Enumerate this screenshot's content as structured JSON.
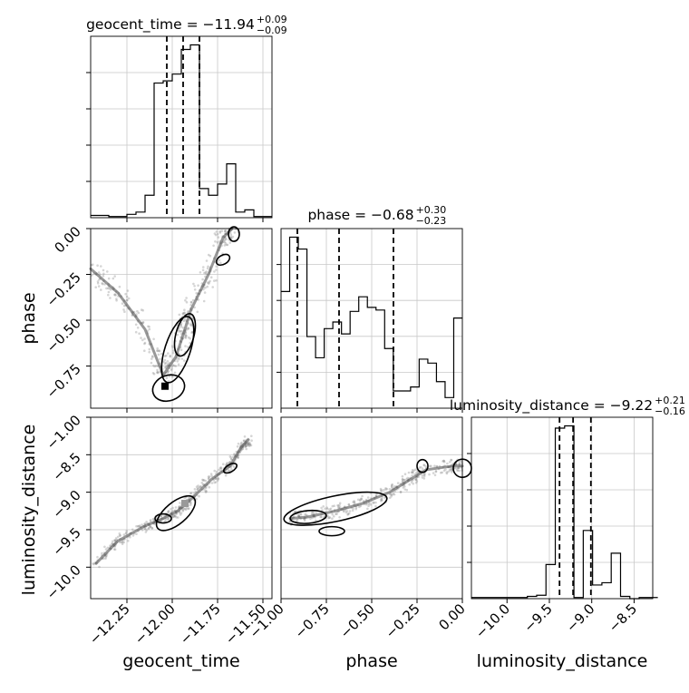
{
  "chart_data": {
    "type": "corner",
    "parameters": [
      "geocent_time",
      "phase",
      "luminosity_distance"
    ],
    "axis_labels": {
      "geocent_time": "geocent_time",
      "phase": "phase",
      "luminosity_distance": "luminosity_distance"
    },
    "ranges": {
      "geocent_time": [
        -12.45,
        -11.45
      ],
      "phase": [
        -1.0,
        0.0
      ],
      "luminosity_distance": [
        -10.42,
        -8.28
      ]
    },
    "ticks": {
      "geocent_time": [
        -12.25,
        -12.0,
        -11.75,
        -11.5
      ],
      "phase_x": [
        -1.0,
        -0.75,
        -0.5,
        -0.25,
        0.0
      ],
      "phase_y": [
        0.0,
        -0.25,
        -0.5,
        -0.75
      ],
      "luminosity_distance_x": [
        -10.0,
        -9.5,
        -9.0,
        -8.5
      ],
      "luminosity_distance_y": [
        -8.5,
        -9.0,
        -9.5,
        -10.0
      ]
    },
    "tick_labels": {
      "geocent_time": [
        "−12.25",
        "−12.00",
        "−11.75",
        "−11.50"
      ],
      "phase_x": [
        "−1.00",
        "−0.75",
        "−0.50",
        "−0.25",
        "0.00"
      ],
      "phase_y": [
        "0.00",
        "−0.25",
        "−0.50",
        "−0.75"
      ],
      "luminosity_distance_x": [
        "−10.0",
        "−9.5",
        "−9.0",
        "−8.5"
      ],
      "luminosity_distance_y": [
        "−8.5",
        "−9.0",
        "−9.5",
        "−10.0"
      ],
      "extra_y_top": "−1.00"
    },
    "titles": [
      {
        "param": "geocent_time",
        "prefix": "geocent_time = −11.94",
        "sup": "+0.09",
        "sub": "−0.09"
      },
      {
        "param": "phase",
        "prefix": "phase = −0.68",
        "sup": "+0.30",
        "sub": "−0.23"
      },
      {
        "param": "luminosity_distance",
        "prefix": "luminosity_distance = −9.22",
        "sup": "+0.21",
        "sub": "−0.16"
      }
    ],
    "quantiles": {
      "geocent_time": [
        -12.03,
        -11.94,
        -11.85
      ],
      "phase": [
        -0.91,
        -0.68,
        -0.38
      ],
      "luminosity_distance": [
        -9.38,
        -9.22,
        -9.01
      ]
    },
    "histograms": {
      "geocent_time": [
        2,
        2,
        1,
        1,
        3,
        5,
        20,
        120,
        122,
        128,
        150,
        154,
        26,
        20,
        30,
        48,
        5,
        7,
        1,
        1
      ],
      "phase": [
        88,
        129,
        120,
        54,
        38,
        60,
        65,
        56,
        73,
        84,
        76,
        74,
        45,
        13,
        13,
        16,
        37,
        34,
        20,
        8,
        68
      ],
      "luminosity_distance": [
        1,
        1,
        1,
        1,
        1,
        1,
        2,
        3,
        30,
        150,
        152,
        1,
        60,
        12,
        14,
        40,
        2,
        0,
        1,
        1
      ],
      "luminosity_distance_bin_edges": [
        -10.42,
        -10.31,
        -10.2,
        -10.09,
        -9.98,
        -9.87,
        -9.76,
        -9.65,
        -9.54,
        -9.43,
        -9.32,
        -9.21,
        -9.1,
        -8.99,
        -8.88,
        -8.77,
        -8.66,
        -8.55,
        -8.44,
        -8.33,
        -8.22
      ]
    },
    "scatter_trends": {
      "geocent_time_vs_phase": [
        [
          -12.45,
          -0.22
        ],
        [
          -12.3,
          -0.35
        ],
        [
          -12.15,
          -0.55
        ],
        [
          -12.05,
          -0.8
        ],
        [
          -11.98,
          -0.7
        ],
        [
          -11.93,
          -0.55
        ],
        [
          -11.9,
          -0.45
        ],
        [
          -11.8,
          -0.25
        ],
        [
          -11.72,
          -0.05
        ],
        [
          -11.67,
          0.0
        ]
      ],
      "geocent_time_vs_luminosity_distance": [
        [
          -12.42,
          -9.95
        ],
        [
          -12.3,
          -9.65
        ],
        [
          -12.15,
          -9.45
        ],
        [
          -12.05,
          -9.35
        ],
        [
          -11.97,
          -9.25
        ],
        [
          -11.9,
          -9.1
        ],
        [
          -11.78,
          -8.82
        ],
        [
          -11.68,
          -8.65
        ],
        [
          -11.62,
          -8.4
        ],
        [
          -11.58,
          -8.3
        ]
      ],
      "phase_vs_luminosity_distance": [
        [
          -0.95,
          -9.35
        ],
        [
          -0.85,
          -9.33
        ],
        [
          -0.7,
          -9.25
        ],
        [
          -0.55,
          -9.15
        ],
        [
          -0.4,
          -9.0
        ],
        [
          -0.3,
          -8.85
        ],
        [
          -0.2,
          -8.7
        ],
        [
          -0.05,
          -8.65
        ],
        [
          0.0,
          -8.65
        ]
      ]
    }
  }
}
